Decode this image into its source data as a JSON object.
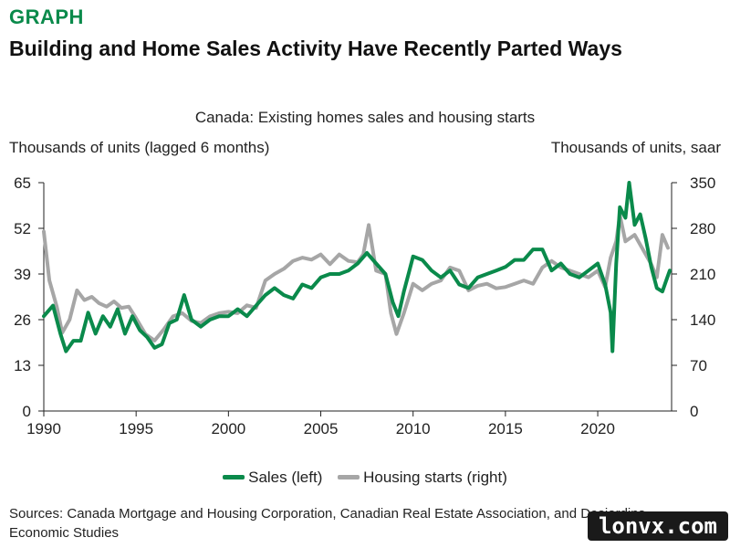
{
  "header": {
    "kicker": "GRAPH",
    "title": "Building and Home Sales Activity Have Recently Parted Ways"
  },
  "footer": {
    "source": "Sources: Canada Mortgage and Housing Corporation, Canadian Real Estate Association, and Desjardins Economic Studies",
    "watermark": "lonvx.com"
  },
  "chart_data": {
    "type": "line",
    "title": "Canada: Existing homes sales and housing starts",
    "ylabel_left": "Thousands of units (lagged 6 months)",
    "ylabel_right": "Thousands of units, saar",
    "xlim": [
      1990,
      2024
    ],
    "ylim_left": [
      0,
      65
    ],
    "ylim_right": [
      0,
      350
    ],
    "x_ticks": [
      1990,
      1995,
      2000,
      2005,
      2010,
      2015,
      2020
    ],
    "y_ticks_left": [
      0,
      13,
      26,
      39,
      52,
      65
    ],
    "y_ticks_right": [
      0,
      70,
      140,
      210,
      280,
      350
    ],
    "grid": false,
    "legend_position": "bottom",
    "series": [
      {
        "name": "Sales (left)",
        "axis": "left",
        "color": "#0a8a4b",
        "points": [
          [
            1990.0,
            27
          ],
          [
            1990.5,
            30
          ],
          [
            1990.9,
            22
          ],
          [
            1991.2,
            17
          ],
          [
            1991.6,
            20
          ],
          [
            1992.0,
            20
          ],
          [
            1992.4,
            28
          ],
          [
            1992.8,
            22
          ],
          [
            1993.2,
            27
          ],
          [
            1993.6,
            24
          ],
          [
            1994.0,
            29
          ],
          [
            1994.4,
            22
          ],
          [
            1994.8,
            27
          ],
          [
            1995.2,
            23
          ],
          [
            1995.6,
            21
          ],
          [
            1996.0,
            18
          ],
          [
            1996.4,
            19
          ],
          [
            1996.8,
            25
          ],
          [
            1997.2,
            26
          ],
          [
            1997.6,
            33
          ],
          [
            1998.0,
            26
          ],
          [
            1998.5,
            24
          ],
          [
            1999.0,
            26
          ],
          [
            1999.5,
            27
          ],
          [
            2000.0,
            27
          ],
          [
            2000.5,
            29
          ],
          [
            2001.0,
            27
          ],
          [
            2001.5,
            30
          ],
          [
            2002.0,
            33
          ],
          [
            2002.5,
            35
          ],
          [
            2003.0,
            33
          ],
          [
            2003.5,
            32
          ],
          [
            2004.0,
            36
          ],
          [
            2004.5,
            35
          ],
          [
            2005.0,
            38
          ],
          [
            2005.5,
            39
          ],
          [
            2006.0,
            39
          ],
          [
            2006.5,
            40
          ],
          [
            2007.0,
            42
          ],
          [
            2007.5,
            45
          ],
          [
            2008.0,
            42
          ],
          [
            2008.5,
            39
          ],
          [
            2008.9,
            31
          ],
          [
            2009.2,
            27
          ],
          [
            2009.5,
            34
          ],
          [
            2009.8,
            40
          ],
          [
            2010.0,
            44
          ],
          [
            2010.5,
            43
          ],
          [
            2011.0,
            40
          ],
          [
            2011.5,
            38
          ],
          [
            2012.0,
            40
          ],
          [
            2012.5,
            36
          ],
          [
            2013.0,
            35
          ],
          [
            2013.5,
            38
          ],
          [
            2014.0,
            39
          ],
          [
            2014.5,
            40
          ],
          [
            2015.0,
            41
          ],
          [
            2015.5,
            43
          ],
          [
            2016.0,
            43
          ],
          [
            2016.5,
            46
          ],
          [
            2017.0,
            46
          ],
          [
            2017.5,
            40
          ],
          [
            2018.0,
            42
          ],
          [
            2018.5,
            39
          ],
          [
            2019.0,
            38
          ],
          [
            2019.5,
            40
          ],
          [
            2020.0,
            42
          ],
          [
            2020.4,
            36
          ],
          [
            2020.7,
            28
          ],
          [
            2020.8,
            17
          ],
          [
            2021.0,
            42
          ],
          [
            2021.2,
            58
          ],
          [
            2021.5,
            55
          ],
          [
            2021.7,
            65
          ],
          [
            2022.0,
            53
          ],
          [
            2022.3,
            56
          ],
          [
            2022.6,
            49
          ],
          [
            2022.9,
            41
          ],
          [
            2023.2,
            35
          ],
          [
            2023.5,
            34
          ],
          [
            2023.7,
            37
          ],
          [
            2023.9,
            40
          ]
        ]
      },
      {
        "name": "Housing starts (right)",
        "axis": "right",
        "color": "#a6a6a6",
        "points": [
          [
            1990.0,
            275
          ],
          [
            1990.3,
            200
          ],
          [
            1990.7,
            160
          ],
          [
            1991.0,
            120
          ],
          [
            1991.4,
            140
          ],
          [
            1991.8,
            185
          ],
          [
            1992.2,
            170
          ],
          [
            1992.6,
            175
          ],
          [
            1993.0,
            165
          ],
          [
            1993.4,
            160
          ],
          [
            1993.8,
            168
          ],
          [
            1994.2,
            158
          ],
          [
            1994.6,
            160
          ],
          [
            1995.0,
            142
          ],
          [
            1995.5,
            118
          ],
          [
            1996.0,
            108
          ],
          [
            1996.5,
            125
          ],
          [
            1997.0,
            145
          ],
          [
            1997.5,
            150
          ],
          [
            1998.0,
            138
          ],
          [
            1998.5,
            135
          ],
          [
            1999.0,
            145
          ],
          [
            1999.5,
            150
          ],
          [
            2000.0,
            152
          ],
          [
            2000.5,
            150
          ],
          [
            2001.0,
            162
          ],
          [
            2001.5,
            158
          ],
          [
            2002.0,
            200
          ],
          [
            2002.5,
            210
          ],
          [
            2003.0,
            218
          ],
          [
            2003.5,
            230
          ],
          [
            2004.0,
            235
          ],
          [
            2004.5,
            232
          ],
          [
            2005.0,
            240
          ],
          [
            2005.5,
            225
          ],
          [
            2006.0,
            240
          ],
          [
            2006.5,
            230
          ],
          [
            2007.0,
            228
          ],
          [
            2007.3,
            240
          ],
          [
            2007.6,
            285
          ],
          [
            2008.0,
            215
          ],
          [
            2008.5,
            210
          ],
          [
            2008.8,
            150
          ],
          [
            2009.1,
            118
          ],
          [
            2009.5,
            150
          ],
          [
            2010.0,
            195
          ],
          [
            2010.5,
            185
          ],
          [
            2011.0,
            195
          ],
          [
            2011.5,
            200
          ],
          [
            2012.0,
            220
          ],
          [
            2012.5,
            215
          ],
          [
            2013.0,
            185
          ],
          [
            2013.5,
            192
          ],
          [
            2014.0,
            195
          ],
          [
            2014.5,
            188
          ],
          [
            2015.0,
            190
          ],
          [
            2015.5,
            195
          ],
          [
            2016.0,
            200
          ],
          [
            2016.5,
            195
          ],
          [
            2017.0,
            220
          ],
          [
            2017.5,
            230
          ],
          [
            2018.0,
            220
          ],
          [
            2018.5,
            215
          ],
          [
            2019.0,
            210
          ],
          [
            2019.5,
            205
          ],
          [
            2020.0,
            215
          ],
          [
            2020.4,
            190
          ],
          [
            2020.7,
            235
          ],
          [
            2021.0,
            260
          ],
          [
            2021.2,
            300
          ],
          [
            2021.5,
            260
          ],
          [
            2022.0,
            270
          ],
          [
            2022.3,
            255
          ],
          [
            2022.6,
            240
          ],
          [
            2022.9,
            225
          ],
          [
            2023.2,
            205
          ],
          [
            2023.5,
            270
          ],
          [
            2023.8,
            250
          ]
        ]
      }
    ]
  }
}
